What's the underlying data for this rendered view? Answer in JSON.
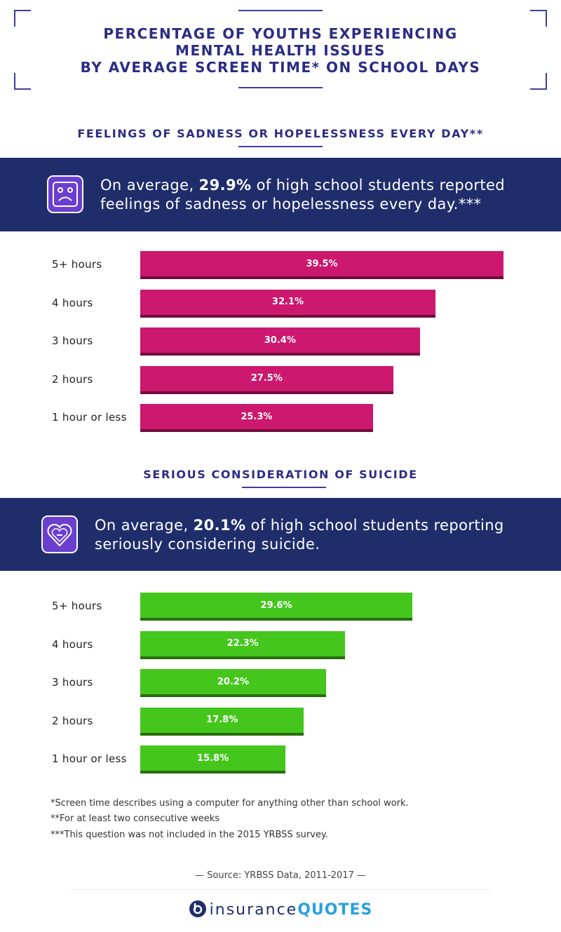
{
  "title_lines": [
    "PERCENTAGE OF YOUTHS EXPERIENCING",
    "MENTAL HEALTH ISSUES",
    "BY AVERAGE SCREEN TIME* ON SCHOOL DAYS"
  ],
  "callouts": [
    {
      "before": "On average, ",
      "highlight": "29.9%",
      "after": " of high school students reported feelings of sadness or hopelessness every day.***"
    },
    {
      "before": "On average, ",
      "highlight": "20.1%",
      "after": " of high school students reporting seriously considering suicide."
    }
  ],
  "chart_data": [
    {
      "type": "bar",
      "orientation": "horizontal",
      "title": "FEELINGS OF SADNESS OR HOPELESSNESS EVERY DAY**",
      "categories": [
        "5+ hours",
        "4 hours",
        "3 hours",
        "2 hours",
        "1 hour or less"
      ],
      "values": [
        39.5,
        32.1,
        30.4,
        27.5,
        25.3
      ],
      "value_labels": [
        "39.5%",
        "32.1%",
        "30.4%",
        "27.5%",
        "25.3%"
      ],
      "color": "#cc186e"
    },
    {
      "type": "bar",
      "orientation": "horizontal",
      "title": "SERIOUS CONSIDERATION OF SUICIDE",
      "categories": [
        "5+ hours",
        "4 hours",
        "3 hours",
        "2 hours",
        "1 hour or less"
      ],
      "values": [
        29.6,
        22.3,
        20.2,
        17.8,
        15.8
      ],
      "value_labels": [
        "29.6%",
        "22.3%",
        "20.2%",
        "17.8%",
        "15.8%"
      ],
      "color": "#45c61c"
    }
  ],
  "footnotes": [
    "*Screen time describes using a computer for anything other than school work.",
    "**For at least two consecutive weeks",
    "***This question was not included in the 2015 YRBSS survey."
  ],
  "source": "— Source: YRBSS Data, 2011-2017 —",
  "logo": {
    "first": "insurance",
    "second": "QUOTES"
  }
}
